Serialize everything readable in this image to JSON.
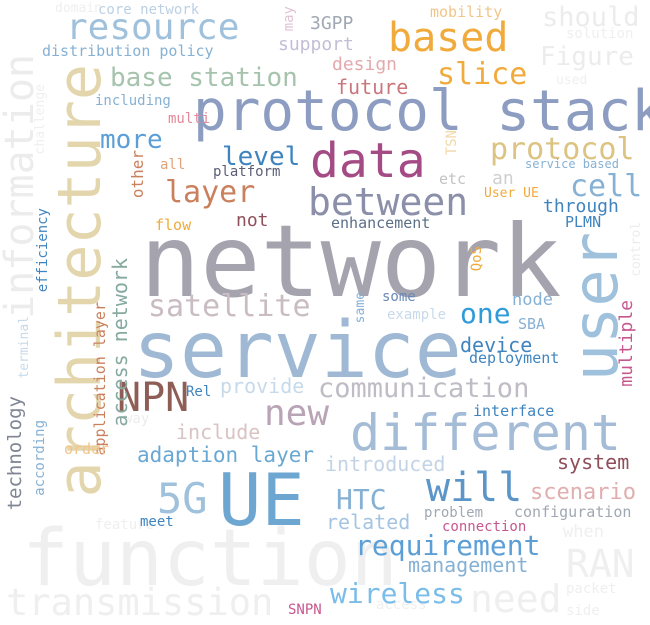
{
  "words": {
    "network": "network",
    "service": "service",
    "function": "function",
    "architecture": "architecture",
    "information": "information",
    "UE": "UE",
    "user": "user",
    "protocol_stack": "protocol stack",
    "data": "data",
    "different": "different",
    "resource": "resource",
    "based": "based",
    "transmission": "transmission",
    "between": "between",
    "will": "will",
    "requirement": "requirement",
    "NPN": "NPN",
    "new": "new",
    "need": "need",
    "RAN": "RAN",
    "5G": "5G",
    "satellite": "satellite",
    "communication": "communication",
    "slice": "slice",
    "protocol": "protocol",
    "base_station": "base station",
    "layer": "layer",
    "more": "more",
    "level": "level",
    "cell": "cell",
    "one": "one",
    "wireless": "wireless",
    "HTC": "HTC",
    "should": "should",
    "Figure": "Figure",
    "scenario": "scenario",
    "system": "system",
    "access_network": "access network",
    "adaption_layer": "adaption layer",
    "management": "management",
    "related": "related",
    "introduced": "introduced",
    "device": "device",
    "multiple": "multiple",
    "technology": "technology",
    "include": "include",
    "provide": "provide",
    "future": "future",
    "design": "design",
    "support": "support",
    "3GPP": "3GPP",
    "distribution_policy": "distribution policy",
    "core_network": "core network",
    "domain": "domain",
    "mobility": "mobility",
    "solution": "solution",
    "used": "used",
    "may": "may",
    "challenge": "challenge",
    "including": "including",
    "multi": "multi",
    "all": "all",
    "other": "other",
    "platform": "platform",
    "TSN": "TSN",
    "etc": "etc",
    "an": "an",
    "service_based": "service based",
    "User_UE": "User UE",
    "through": "through",
    "PLMN": "PLMN",
    "not": "not",
    "enhancement": "enhancement",
    "flow": "flow",
    "efficiency": "efficiency",
    "QoS": "QoS",
    "control": "control",
    "node": "node",
    "some": "some",
    "same": "same",
    "example": "example",
    "SBA": "SBA",
    "deployment": "deployment",
    "terminal": "terminal",
    "application_layer": "application layer",
    "Rel": "Rel",
    "way": "way",
    "interface": "interface",
    "order": "order",
    "according": "according",
    "problem": "problem",
    "configuration": "configuration",
    "connection": "connection",
    "feature": "feature",
    "when": "when",
    "meet": "meet",
    "packet": "packet",
    "side": "side",
    "access": "access",
    "SNPN": "SNPN"
  },
  "colors": {
    "background": "#ffffff",
    "gray": "#a4a3ae",
    "steel_blue": "#5c95c8",
    "light_blue": "#9fc1dc",
    "sky_blue": "#5aaee4",
    "slate_blue": "#8c9dc1",
    "orange": "#f0ab3c",
    "light_orange": "#f2c58a",
    "tan": "#e3d6ad",
    "sand": "#dcc382",
    "rust": "#ca805c",
    "magenta": "#a44a85",
    "pink": "#c7578f",
    "mauve": "#b9a4b6",
    "burgundy": "#8e4f5a",
    "sage": "#a6c3ae",
    "faint_gray": "#ececec",
    "faint_blue": "#dde9f3"
  }
}
